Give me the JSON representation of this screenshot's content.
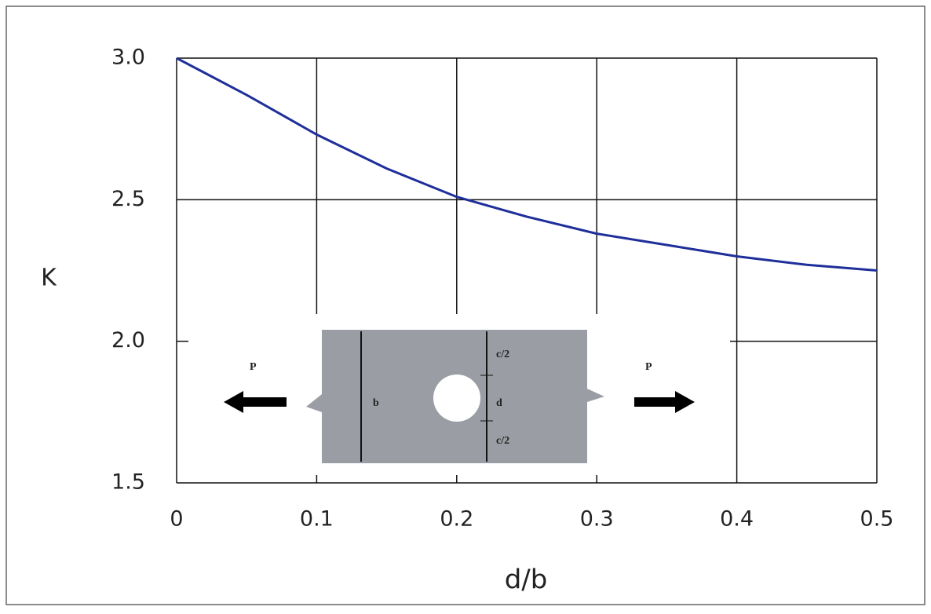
{
  "chart_data": {
    "type": "line",
    "xlabel": "d/b",
    "ylabel": "K",
    "x": [
      0,
      0.05,
      0.1,
      0.15,
      0.2,
      0.25,
      0.3,
      0.35,
      0.4,
      0.45,
      0.5
    ],
    "series": [
      {
        "color": "#1f2f9a",
        "values": [
          3.0,
          2.87,
          2.73,
          2.61,
          2.51,
          2.44,
          2.38,
          2.34,
          2.3,
          2.27,
          2.25
        ]
      }
    ],
    "xlim": [
      0,
      0.5
    ],
    "xticks": [
      0,
      0.1,
      0.2,
      0.3,
      0.4,
      0.5
    ],
    "ylim": [
      1.5,
      3.0
    ],
    "yticks": [
      {
        "value": 1.5,
        "label": "1.5"
      },
      {
        "value": 2.0,
        "label": "2.0"
      },
      {
        "value": 2.5,
        "label": "2.5"
      },
      {
        "value": 3.0,
        "label": "3.0"
      }
    ],
    "grid": true,
    "annotations": [
      "P",
      "P",
      "b",
      "c/2",
      "d",
      "c/2"
    ]
  }
}
